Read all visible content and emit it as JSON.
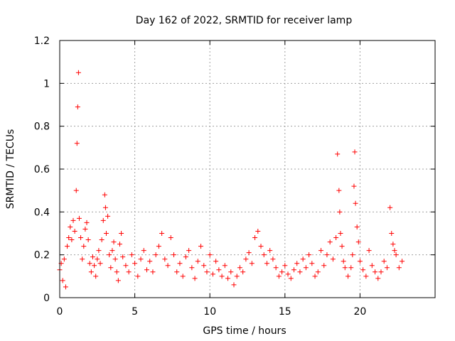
{
  "chart_data": {
    "type": "scatter",
    "title": "Day 162 of 2022, SRMTID for receiver lamp",
    "xlabel": "GPS time / hours",
    "ylabel": "SRMTID / TECUs",
    "xlim": [
      0,
      25
    ],
    "ylim": [
      0,
      1.2
    ],
    "grid": true,
    "legend": "none",
    "x_ticks": [
      0,
      5,
      10,
      15,
      20
    ],
    "x_tick_labels": [
      "0",
      "5",
      "10",
      "15",
      "20"
    ],
    "y_ticks": [
      0,
      0.2,
      0.4,
      0.6,
      0.8,
      1.0,
      1.2
    ],
    "y_tick_labels": [
      "0",
      "0.2",
      "0.4",
      "0.6",
      "0.8",
      "1",
      "1.2"
    ],
    "series": [
      {
        "name": "SRMTID",
        "marker": "+",
        "color": "#ff0000",
        "x": [
          0.0,
          0.1,
          0.2,
          0.3,
          0.4,
          0.5,
          0.6,
          0.7,
          0.8,
          0.9,
          1.0,
          1.1,
          1.15,
          1.2,
          1.25,
          1.3,
          1.4,
          1.5,
          1.6,
          1.7,
          1.8,
          1.9,
          2.0,
          2.1,
          2.2,
          2.3,
          2.4,
          2.5,
          2.6,
          2.7,
          2.8,
          2.9,
          3.0,
          3.05,
          3.1,
          3.2,
          3.3,
          3.4,
          3.5,
          3.6,
          3.7,
          3.8,
          3.9,
          4.0,
          4.1,
          4.2,
          4.4,
          4.6,
          4.8,
          5.0,
          5.2,
          5.4,
          5.6,
          5.8,
          6.0,
          6.2,
          6.4,
          6.6,
          6.8,
          7.0,
          7.2,
          7.4,
          7.6,
          7.8,
          8.0,
          8.2,
          8.4,
          8.6,
          8.8,
          9.0,
          9.2,
          9.4,
          9.6,
          9.8,
          10.0,
          10.2,
          10.4,
          10.6,
          10.8,
          11.0,
          11.2,
          11.4,
          11.6,
          11.8,
          12.0,
          12.2,
          12.4,
          12.6,
          12.8,
          13.0,
          13.2,
          13.4,
          13.6,
          13.8,
          14.0,
          14.2,
          14.4,
          14.6,
          14.8,
          15.0,
          15.2,
          15.4,
          15.6,
          15.8,
          16.0,
          16.2,
          16.4,
          16.6,
          16.8,
          17.0,
          17.2,
          17.4,
          17.6,
          17.8,
          18.0,
          18.2,
          18.4,
          18.5,
          18.6,
          18.65,
          18.7,
          18.8,
          18.9,
          19.0,
          19.2,
          19.4,
          19.5,
          19.6,
          19.65,
          19.7,
          19.8,
          19.9,
          20.0,
          20.2,
          20.4,
          20.6,
          20.8,
          21.0,
          21.2,
          21.4,
          21.6,
          21.8,
          22.0,
          22.1,
          22.2,
          22.3,
          22.4,
          22.6,
          22.8
        ],
        "y": [
          0.13,
          0.16,
          0.08,
          0.18,
          0.05,
          0.24,
          0.28,
          0.33,
          0.27,
          0.36,
          0.31,
          0.5,
          0.72,
          0.89,
          1.05,
          0.37,
          0.28,
          0.18,
          0.24,
          0.32,
          0.35,
          0.27,
          0.16,
          0.12,
          0.19,
          0.15,
          0.1,
          0.18,
          0.22,
          0.16,
          0.27,
          0.36,
          0.48,
          0.42,
          0.3,
          0.38,
          0.2,
          0.14,
          0.22,
          0.26,
          0.18,
          0.12,
          0.08,
          0.25,
          0.3,
          0.19,
          0.15,
          0.12,
          0.2,
          0.16,
          0.1,
          0.18,
          0.22,
          0.13,
          0.17,
          0.12,
          0.2,
          0.24,
          0.3,
          0.18,
          0.15,
          0.28,
          0.2,
          0.12,
          0.16,
          0.1,
          0.19,
          0.22,
          0.14,
          0.09,
          0.17,
          0.24,
          0.15,
          0.12,
          0.2,
          0.11,
          0.17,
          0.13,
          0.1,
          0.15,
          0.09,
          0.12,
          0.06,
          0.1,
          0.14,
          0.12,
          0.18,
          0.21,
          0.16,
          0.28,
          0.31,
          0.24,
          0.2,
          0.16,
          0.22,
          0.18,
          0.14,
          0.1,
          0.12,
          0.15,
          0.11,
          0.09,
          0.13,
          0.16,
          0.12,
          0.18,
          0.14,
          0.2,
          0.16,
          0.1,
          0.12,
          0.22,
          0.15,
          0.2,
          0.26,
          0.18,
          0.28,
          0.67,
          0.5,
          0.4,
          0.3,
          0.24,
          0.17,
          0.14,
          0.1,
          0.14,
          0.2,
          0.52,
          0.68,
          0.44,
          0.33,
          0.26,
          0.17,
          0.13,
          0.1,
          0.22,
          0.15,
          0.12,
          0.09,
          0.12,
          0.17,
          0.14,
          0.42,
          0.3,
          0.25,
          0.22,
          0.2,
          0.14,
          0.17
        ]
      }
    ]
  }
}
